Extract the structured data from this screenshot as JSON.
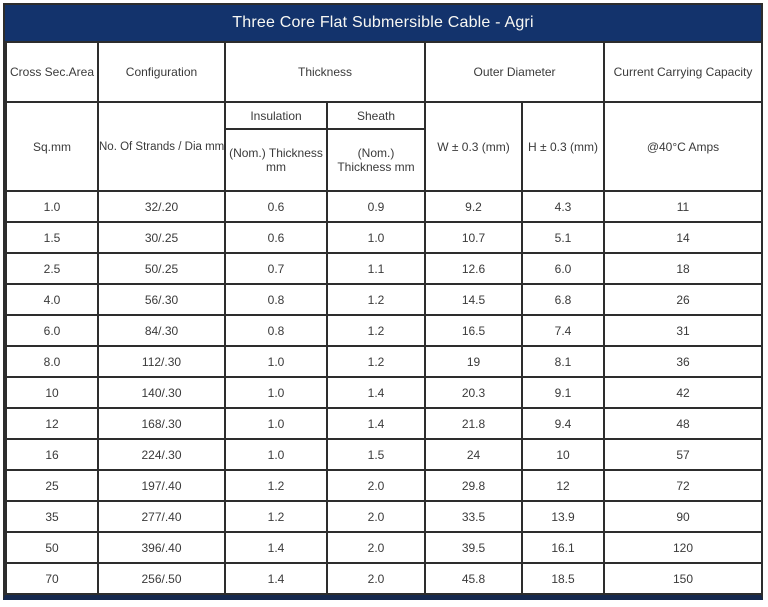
{
  "title": "Three Core Flat Submersible Cable - Agri",
  "colors": {
    "header_bg": "#13336c",
    "bottom_strip": "#16294e",
    "grid_border": "#2d2d2d",
    "title_text": "#f8f8f3",
    "body_text": "#3a3a3a"
  },
  "table": {
    "top_headers": {
      "cross_sec_area": "Cross Sec.Area",
      "configuration": "Configuration",
      "thickness": "Thickness",
      "outer_diameter": "Outer Diameter",
      "current_carrying_capacity": "Current Carrying Capacity"
    },
    "sub_headers": {
      "sq_mm": "Sq.mm",
      "strands_dia": "No. Of Strands / Dia mm",
      "insulation": "Insulation",
      "sheath": "Sheath",
      "insulation_nom_thickness": "(Nom.) Thickness mm",
      "sheath_nom_thickness": "(Nom.) Thickness mm",
      "width": "W ± 0.3 (mm)",
      "height": "H ± 0.3 (mm)",
      "amps": "@40°C Amps"
    },
    "rows": [
      [
        "1.0",
        "32/.20",
        "0.6",
        "0.9",
        "9.2",
        "4.3",
        "11"
      ],
      [
        "1.5",
        "30/.25",
        "0.6",
        "1.0",
        "10.7",
        "5.1",
        "14"
      ],
      [
        "2.5",
        "50/.25",
        "0.7",
        "1.1",
        "12.6",
        "6.0",
        "18"
      ],
      [
        "4.0",
        "56/.30",
        "0.8",
        "1.2",
        "14.5",
        "6.8",
        "26"
      ],
      [
        "6.0",
        "84/.30",
        "0.8",
        "1.2",
        "16.5",
        "7.4",
        "31"
      ],
      [
        "8.0",
        "112/.30",
        "1.0",
        "1.2",
        "19",
        "8.1",
        "36"
      ],
      [
        "10",
        "140/.30",
        "1.0",
        "1.4",
        "20.3",
        "9.1",
        "42"
      ],
      [
        "12",
        "168/.30",
        "1.0",
        "1.4",
        "21.8",
        "9.4",
        "48"
      ],
      [
        "16",
        "224/.30",
        "1.0",
        "1.5",
        "24",
        "10",
        "57"
      ],
      [
        "25",
        "197/.40",
        "1.2",
        "2.0",
        "29.8",
        "12",
        "72"
      ],
      [
        "35",
        "277/.40",
        "1.2",
        "2.0",
        "33.5",
        "13.9",
        "90"
      ],
      [
        "50",
        "396/.40",
        "1.4",
        "2.0",
        "39.5",
        "16.1",
        "120"
      ],
      [
        "70",
        "256/.50",
        "1.4",
        "2.0",
        "45.8",
        "18.5",
        "150"
      ]
    ]
  }
}
